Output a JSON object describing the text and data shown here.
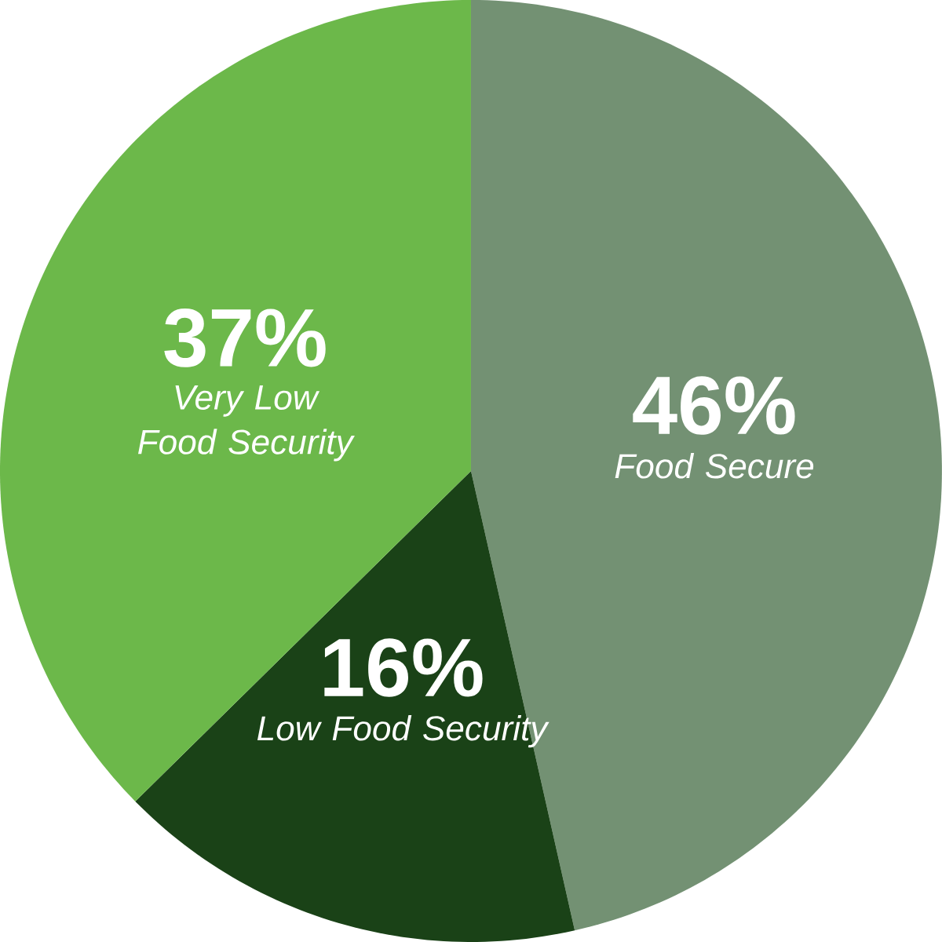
{
  "chart_data": {
    "type": "pie",
    "categories": [
      "Food Secure",
      "Low Food Security",
      "Very Low Food Security"
    ],
    "values": [
      46,
      16,
      37
    ],
    "value_labels": [
      "46%",
      "16%",
      "37%"
    ],
    "colors": [
      "#739173",
      "#1a4217",
      "#6cb84a"
    ]
  }
}
